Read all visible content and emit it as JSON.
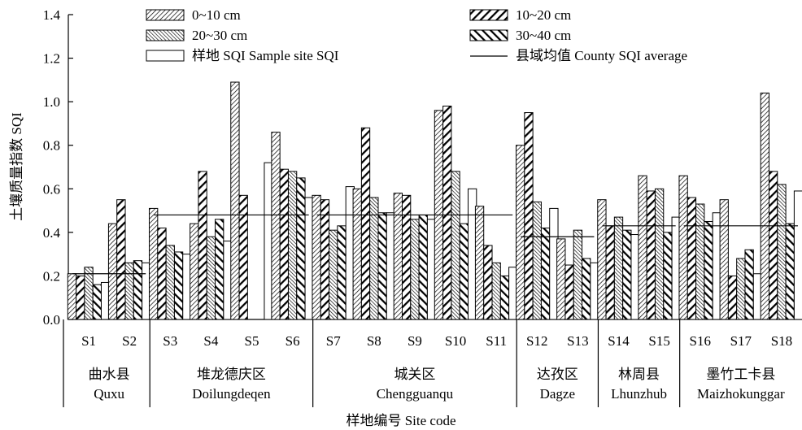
{
  "chart_data": {
    "type": "bar",
    "ylabel": "土壤质量指数 SQI",
    "xlabel": "样地编号 Site code",
    "ylim": [
      0,
      1.4
    ],
    "yticks": [
      "0.0",
      "0.2",
      "0.4",
      "0.6",
      "0.8",
      "1.0",
      "1.2",
      "1.4"
    ],
    "grid": false,
    "legend_position": "top",
    "categories": [
      "S1",
      "S2",
      "S3",
      "S4",
      "S5",
      "S6",
      "S7",
      "S8",
      "S9",
      "S10",
      "S11",
      "S12",
      "S13",
      "S14",
      "S15",
      "S16",
      "S17",
      "S18"
    ],
    "series": [
      {
        "name": "0~10 cm",
        "pattern": "fine-diagonal",
        "values": [
          0.21,
          0.44,
          0.51,
          0.44,
          1.09,
          0.86,
          0.57,
          0.6,
          0.58,
          0.96,
          0.52,
          0.8,
          0.37,
          0.55,
          0.66,
          0.66,
          0.55,
          1.04
        ]
      },
      {
        "name": "10~20 cm",
        "pattern": "bold-diagonal",
        "values": [
          0.2,
          0.55,
          0.42,
          0.68,
          0.57,
          0.69,
          0.55,
          0.88,
          0.57,
          0.98,
          0.34,
          0.95,
          0.25,
          0.43,
          0.59,
          0.56,
          0.2,
          0.68
        ]
      },
      {
        "name": "20~30 cm",
        "pattern": "backslash-diagonal",
        "values": [
          0.24,
          0.26,
          0.34,
          0.38,
          0.0,
          0.68,
          0.41,
          0.56,
          0.46,
          0.68,
          0.26,
          0.54,
          0.41,
          0.47,
          0.6,
          0.53,
          0.28,
          0.62
        ]
      },
      {
        "name": "30~40 cm",
        "pattern": "bold-backslash",
        "values": [
          0.16,
          0.27,
          0.31,
          0.46,
          0.0,
          0.65,
          0.43,
          0.49,
          0.48,
          0.44,
          0.2,
          0.42,
          0.28,
          0.41,
          0.4,
          0.45,
          0.32,
          0.44
        ]
      },
      {
        "name": "样地 SQI Sample site SQI",
        "pattern": "hollow",
        "values": [
          0.17,
          0.26,
          0.3,
          0.36,
          0.72,
          0.56,
          0.61,
          0.49,
          0.46,
          0.6,
          0.24,
          0.51,
          0.26,
          0.39,
          0.47,
          0.49,
          0.21,
          0.59
        ]
      }
    ],
    "county_average": {
      "name": "县域均值 County SQI average",
      "counties": [
        {
          "cn": "曲水县",
          "en": "Quxu",
          "sites": [
            "S1",
            "S2"
          ],
          "average": 0.21
        },
        {
          "cn": "堆龙德庆区",
          "en": "Doilungdeqen",
          "sites": [
            "S3",
            "S4",
            "S5",
            "S6"
          ],
          "average": 0.48
        },
        {
          "cn": "城关区",
          "en": "Chengguanqu",
          "sites": [
            "S7",
            "S8",
            "S9",
            "S10",
            "S11"
          ],
          "average": 0.48
        },
        {
          "cn": "达孜区",
          "en": "Dagze",
          "sites": [
            "S12",
            "S13"
          ],
          "average": 0.38
        },
        {
          "cn": "林周县",
          "en": "Lhunzhub",
          "sites": [
            "S14",
            "S15"
          ],
          "average": 0.43
        },
        {
          "cn": "墨竹工卡县",
          "en": "Maizhokunggar",
          "sites": [
            "S16",
            "S17",
            "S18"
          ],
          "average": 0.43
        }
      ]
    }
  }
}
